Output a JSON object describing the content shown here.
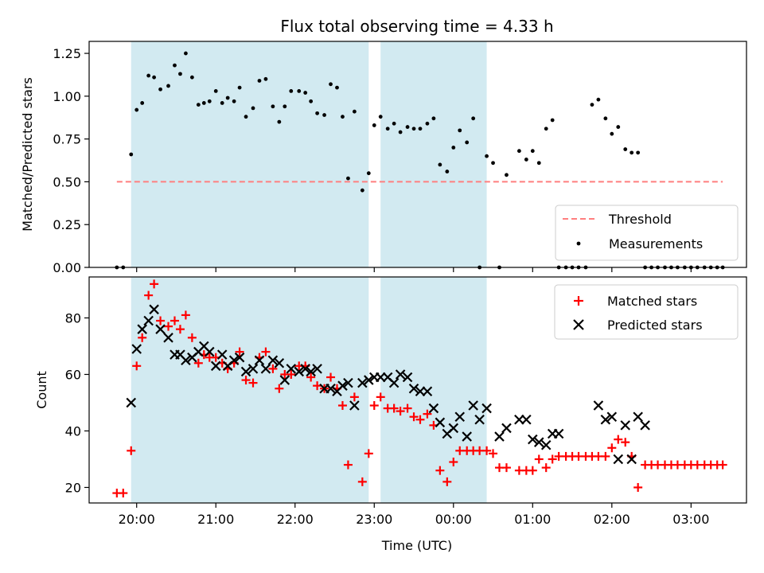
{
  "title": "Flux total observing time = 4.33 h",
  "x_axis": {
    "label": "Time (UTC)",
    "ticks": [
      "20:00",
      "21:00",
      "22:00",
      "23:00",
      "00:00",
      "01:00",
      "02:00",
      "03:00"
    ],
    "tick_hours": [
      20,
      21,
      22,
      23,
      24,
      25,
      26,
      27
    ],
    "range_hours": [
      19.4,
      27.7
    ]
  },
  "shaded_intervals_hours": [
    [
      19.93,
      22.93
    ],
    [
      23.08,
      24.42
    ]
  ],
  "colors": {
    "shade": "#add8e6",
    "threshold": "#ff7f7f",
    "matched": "#ff0000",
    "predicted": "#000000",
    "measurement": "#000000"
  },
  "chart_data": [
    {
      "type": "scatter",
      "ylabel": "Matched/Predicted stars",
      "ylim": [
        0,
        1.32
      ],
      "yticks": [
        "0.00",
        "0.25",
        "0.50",
        "0.75",
        "1.00",
        "1.25"
      ],
      "ytick_values": [
        0,
        0.25,
        0.5,
        0.75,
        1.0,
        1.25
      ],
      "legend_position": "lower-right",
      "legend": {
        "threshold": "Threshold",
        "measurements": "Measurements"
      },
      "threshold": {
        "value": 0.5,
        "x_range": [
          19.75,
          27.4
        ]
      },
      "series": [
        {
          "name": "Measurements",
          "x": [
            19.75,
            19.83,
            19.93,
            20.0,
            20.07,
            20.15,
            20.22,
            20.3,
            20.4,
            20.48,
            20.55,
            20.62,
            20.7,
            20.78,
            20.85,
            20.92,
            21.0,
            21.08,
            21.15,
            21.23,
            21.3,
            21.38,
            21.47,
            21.55,
            21.63,
            21.72,
            21.8,
            21.87,
            21.95,
            22.05,
            22.13,
            22.2,
            22.28,
            22.37,
            22.45,
            22.53,
            22.6,
            22.67,
            22.75,
            22.85,
            22.93,
            23.0,
            23.08,
            23.17,
            23.25,
            23.33,
            23.42,
            23.5,
            23.58,
            23.67,
            23.75,
            23.83,
            23.92,
            24.0,
            24.08,
            24.17,
            24.25,
            24.33,
            24.42,
            24.5,
            24.58,
            24.67,
            24.83,
            24.92,
            25.0,
            25.08,
            25.17,
            25.25,
            25.33,
            25.42,
            25.5,
            25.58,
            25.67,
            25.75,
            25.83,
            25.92,
            26.0,
            26.08,
            26.17,
            26.25,
            26.33,
            26.42,
            26.5,
            26.58,
            26.67,
            26.75,
            26.83,
            26.92,
            27.0,
            27.08,
            27.17,
            27.25,
            27.33,
            27.4
          ],
          "y": [
            0.0,
            0.0,
            0.66,
            0.92,
            0.96,
            1.12,
            1.11,
            1.04,
            1.06,
            1.18,
            1.13,
            1.25,
            1.11,
            0.95,
            0.96,
            0.97,
            1.03,
            0.96,
            0.99,
            0.97,
            1.05,
            0.88,
            0.93,
            1.09,
            1.1,
            0.94,
            0.85,
            0.94,
            1.03,
            1.03,
            1.02,
            0.97,
            0.9,
            0.89,
            1.07,
            1.05,
            0.88,
            0.52,
            0.91,
            0.45,
            0.55,
            0.83,
            0.88,
            0.81,
            0.84,
            0.79,
            0.82,
            0.81,
            0.81,
            0.84,
            0.87,
            0.6,
            0.56,
            0.7,
            0.8,
            0.73,
            0.87,
            0.0,
            0.65,
            0.61,
            0.0,
            0.54,
            0.68,
            0.63,
            0.68,
            0.61,
            0.81,
            0.86,
            0.0,
            0.0,
            0.0,
            0.0,
            0.0,
            0.95,
            0.98,
            0.87,
            0.78,
            0.82,
            0.69,
            0.67,
            0.67,
            0.0,
            0.0,
            0.0,
            0.0,
            0.0,
            0.0,
            0.0,
            0.0,
            0.0,
            0.0,
            0.0,
            0.0,
            0.0
          ]
        }
      ]
    },
    {
      "type": "scatter",
      "ylabel": "Count",
      "ylim": [
        14.5,
        94.5
      ],
      "yticks": [
        "20",
        "40",
        "60",
        "80"
      ],
      "ytick_values": [
        20,
        40,
        60,
        80
      ],
      "legend_position": "upper-right",
      "series": [
        {
          "name": "Matched stars",
          "marker": "plus",
          "x": [
            19.75,
            19.83,
            19.93,
            20.0,
            20.07,
            20.15,
            20.22,
            20.3,
            20.4,
            20.48,
            20.55,
            20.62,
            20.7,
            20.78,
            20.85,
            20.92,
            21.0,
            21.08,
            21.15,
            21.23,
            21.3,
            21.38,
            21.47,
            21.55,
            21.63,
            21.72,
            21.8,
            21.87,
            21.95,
            22.05,
            22.13,
            22.2,
            22.28,
            22.37,
            22.45,
            22.53,
            22.6,
            22.67,
            22.75,
            22.85,
            22.93,
            23.0,
            23.08,
            23.17,
            23.25,
            23.33,
            23.42,
            23.5,
            23.58,
            23.67,
            23.75,
            23.83,
            23.92,
            24.0,
            24.08,
            24.17,
            24.25,
            24.33,
            24.42,
            24.5,
            24.58,
            24.67,
            24.83,
            24.92,
            25.0,
            25.08,
            25.17,
            25.25,
            25.33,
            25.42,
            25.5,
            25.58,
            25.67,
            25.75,
            25.83,
            25.92,
            26.0,
            26.08,
            26.17,
            26.25,
            26.33,
            26.42,
            26.5,
            26.58,
            26.67,
            26.75,
            26.83,
            26.92,
            27.0,
            27.08,
            27.17,
            27.25,
            27.33,
            27.4
          ],
          "y": [
            18,
            18,
            33,
            63,
            73,
            88,
            92,
            79,
            77,
            79,
            76,
            81,
            73,
            64,
            67,
            66,
            66,
            64,
            62,
            64,
            68,
            58,
            57,
            66,
            68,
            62,
            55,
            60,
            60,
            63,
            63,
            59,
            56,
            55,
            59,
            55,
            49,
            28,
            52,
            22,
            32,
            49,
            52,
            48,
            48,
            47,
            48,
            45,
            44,
            46,
            42,
            26,
            22,
            29,
            33,
            33,
            33,
            33,
            33,
            32,
            27,
            27,
            26,
            26,
            26,
            30,
            27,
            30,
            31,
            31,
            31,
            31,
            31,
            31,
            31,
            31,
            34,
            37,
            36,
            31,
            20,
            28,
            28,
            28,
            28,
            28,
            28,
            28,
            28,
            28,
            28,
            28,
            28,
            28
          ]
        },
        {
          "name": "Predicted stars",
          "marker": "x",
          "x": [
            19.93,
            20.0,
            20.07,
            20.15,
            20.22,
            20.3,
            20.4,
            20.48,
            20.55,
            20.62,
            20.7,
            20.78,
            20.85,
            20.92,
            21.0,
            21.08,
            21.15,
            21.23,
            21.3,
            21.38,
            21.47,
            21.55,
            21.63,
            21.72,
            21.8,
            21.87,
            21.95,
            22.05,
            22.13,
            22.2,
            22.28,
            22.37,
            22.45,
            22.53,
            22.6,
            22.67,
            22.75,
            22.85,
            22.93,
            23.0,
            23.08,
            23.17,
            23.25,
            23.33,
            23.42,
            23.5,
            23.58,
            23.67,
            23.75,
            23.83,
            23.92,
            24.0,
            24.08,
            24.17,
            24.25,
            24.33,
            24.42,
            24.58,
            24.67,
            24.83,
            24.92,
            25.0,
            25.08,
            25.17,
            25.25,
            25.33,
            25.83,
            25.92,
            26.0,
            26.08,
            26.17,
            26.25,
            26.33,
            26.42
          ],
          "y": [
            50,
            69,
            76,
            79,
            83,
            76,
            73,
            67,
            67,
            65,
            66,
            68,
            70,
            68,
            63,
            67,
            63,
            65,
            66,
            61,
            62,
            65,
            62,
            65,
            64,
            58,
            62,
            61,
            62,
            61,
            62,
            55,
            55,
            54,
            56,
            57,
            49,
            57,
            58,
            59,
            59,
            59,
            57,
            60,
            59,
            55,
            54,
            54,
            48,
            43,
            39,
            41,
            45,
            38,
            49,
            44,
            48,
            38,
            41,
            44,
            44,
            37,
            36,
            35,
            39,
            39,
            49,
            44,
            45,
            30,
            42,
            30,
            45,
            42
          ]
        }
      ],
      "legend": {
        "matched": "Matched stars",
        "predicted": "Predicted stars"
      }
    }
  ]
}
